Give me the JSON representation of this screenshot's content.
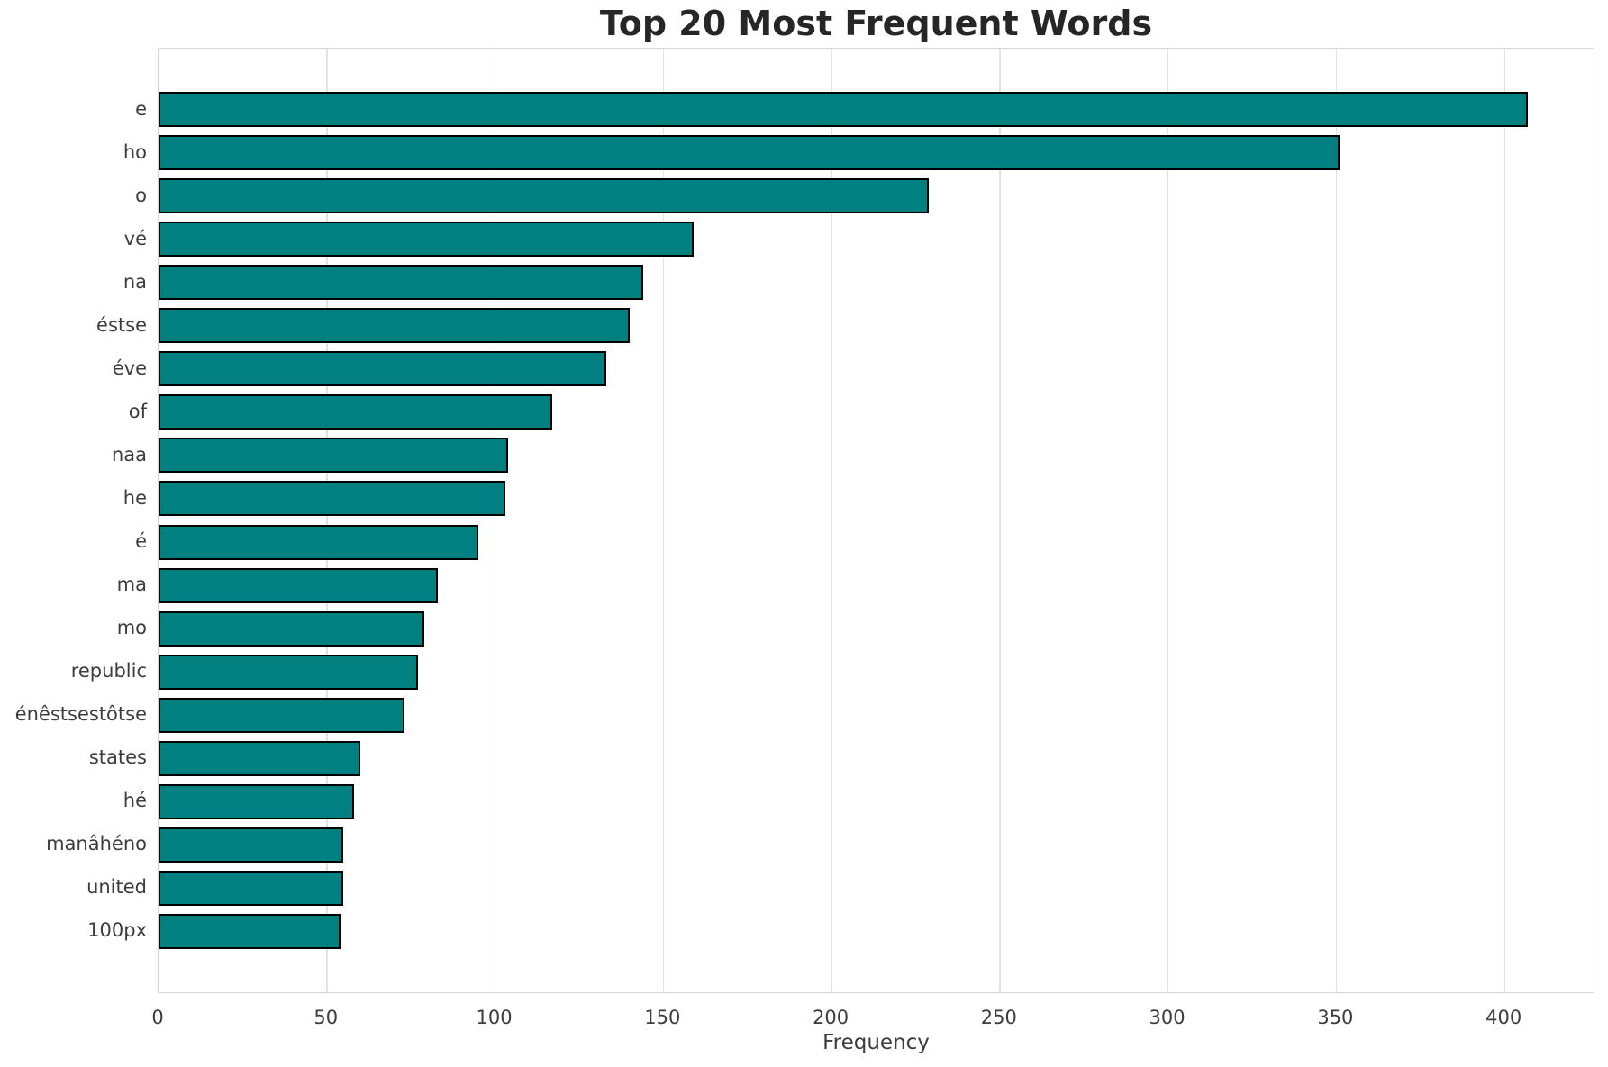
{
  "title": "Top 20 Most Frequent Words",
  "chart_data": {
    "type": "bar",
    "orientation": "horizontal",
    "title": "Top 20 Most Frequent Words",
    "xlabel": "Frequency",
    "ylabel": "",
    "categories": [
      "e",
      "ho",
      "o",
      "vé",
      "na",
      "éstse",
      "éve",
      "of",
      "naa",
      "he",
      "é",
      "ma",
      "mo",
      "republic",
      "énêstsestôtse",
      "states",
      "hé",
      "manâhéno",
      "united",
      "100px"
    ],
    "values": [
      407,
      351,
      229,
      159,
      144,
      140,
      133,
      117,
      104,
      103,
      95,
      83,
      79,
      77,
      73,
      60,
      58,
      55,
      55,
      54
    ],
    "xticks": [
      0,
      50,
      100,
      150,
      200,
      250,
      300,
      350,
      400
    ],
    "xlim": [
      0,
      427
    ],
    "grid": "vertical-only",
    "legend": "none",
    "bar_color": "#008080",
    "bar_edge_color": "#000000"
  },
  "colors": {
    "background": "#ffffff",
    "grid": "#e2e2e2",
    "spine": "#d4d4d4",
    "title_text": "#262626",
    "tick_text": "#3d3d3d",
    "bar_fill": "#008080",
    "bar_edge": "#000000"
  }
}
